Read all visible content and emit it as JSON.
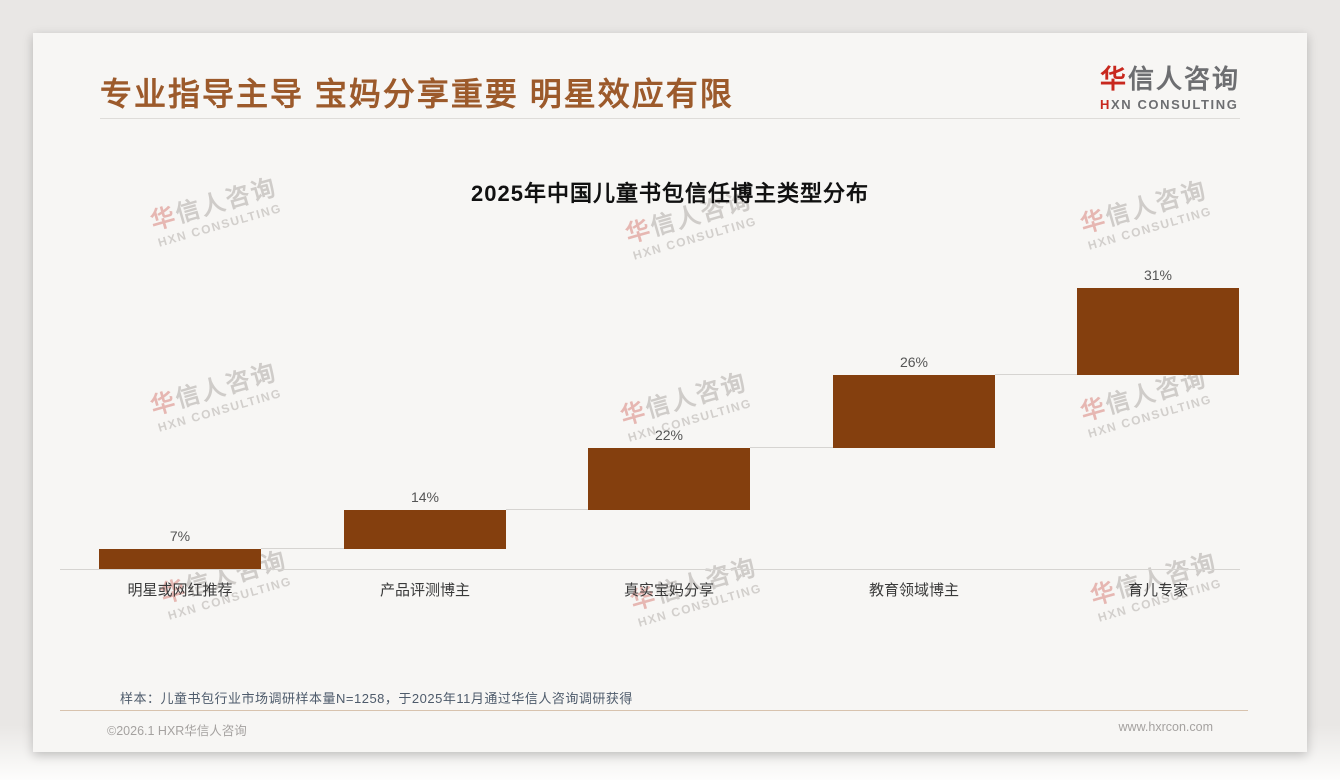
{
  "page": {
    "header": {
      "title": "专业指导主导 宝妈分享重要 明星效应有限",
      "logo": {
        "cn_first": "华",
        "cn_rest": "信人咨询",
        "en_first": "H",
        "en_rest": "XN CONSULTING"
      }
    },
    "watermark": {
      "cn_first": "华",
      "cn_rest": "信人咨询",
      "en": "HXN CONSULTING"
    },
    "note": "样本：儿童书包行业市场调研样本量N=1258，于2025年11月通过华信人咨询调研获得",
    "footer": {
      "left": "©2026.1 HXR华信人咨询",
      "right": "www.hxrcon.com"
    },
    "colors": {
      "accent_title": "#9C5A2B",
      "bar": "#843F0E",
      "logo_red": "#C8281E"
    }
  },
  "chart_data": {
    "type": "bar",
    "subtype": "waterfall-step",
    "title": "2025年中国儿童书包信任博主类型分布",
    "categories": [
      "明星或网红推荐",
      "产品评测博主",
      "真实宝妈分享",
      "教育领域博主",
      "育儿专家"
    ],
    "values": [
      7,
      14,
      22,
      26,
      31
    ],
    "data_labels": [
      "7%",
      "14%",
      "22%",
      "26%",
      "31%"
    ],
    "cumulative": true,
    "xlabel": "",
    "ylabel": "",
    "ylim": [
      0,
      100
    ],
    "grid": false,
    "legend": false,
    "bar_color": "#843F0E"
  }
}
